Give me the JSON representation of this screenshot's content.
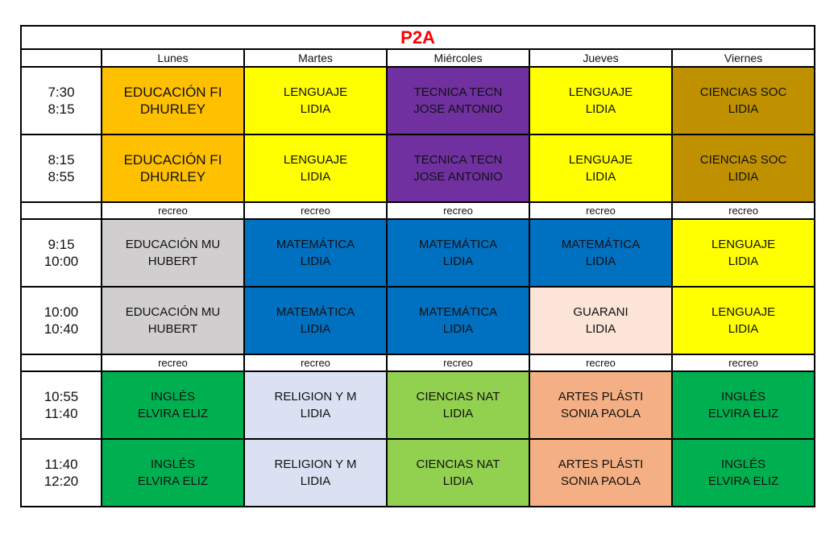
{
  "title": "P2A",
  "days": [
    "Lunes",
    "Martes",
    "Miércoles",
    "Jueves",
    "Viernes"
  ],
  "rows": [
    {
      "type": "slot",
      "times": [
        "7:30",
        "8:15"
      ],
      "cells": [
        {
          "subject": "EDUCACIÓN FI",
          "teacher": "DHURLEY",
          "color": "#ffc000"
        },
        {
          "subject": "LENGUAJE",
          "teacher": "LIDIA",
          "color": "#ffff00"
        },
        {
          "subject": "TECNICA TECN",
          "teacher": "JOSE ANTONIO",
          "color": "#7030a0"
        },
        {
          "subject": "LENGUAJE",
          "teacher": "LIDIA",
          "color": "#ffff00"
        },
        {
          "subject": "CIENCIAS SOC",
          "teacher": "LIDIA",
          "color": "#bf9000"
        }
      ]
    },
    {
      "type": "slot",
      "times": [
        "8:15",
        "8:55"
      ],
      "cells": [
        {
          "subject": "EDUCACIÓN FI",
          "teacher": "DHURLEY",
          "color": "#ffc000"
        },
        {
          "subject": "LENGUAJE",
          "teacher": "LIDIA",
          "color": "#ffff00"
        },
        {
          "subject": "TECNICA TECN",
          "teacher": "JOSE ANTONIO",
          "color": "#7030a0"
        },
        {
          "subject": "LENGUAJE",
          "teacher": "LIDIA",
          "color": "#ffff00"
        },
        {
          "subject": "CIENCIAS SOC",
          "teacher": "LIDIA",
          "color": "#bf9000"
        }
      ]
    },
    {
      "type": "break",
      "cells": [
        "recreo",
        "recreo",
        "recreo",
        "recreo",
        "recreo"
      ]
    },
    {
      "type": "slot",
      "times": [
        "9:15",
        "10:00"
      ],
      "cells": [
        {
          "subject": "EDUCACIÓN MU",
          "teacher": "HUBERT",
          "color": "#d0cece"
        },
        {
          "subject": "MATEMÁTICA",
          "teacher": "LIDIA",
          "color": "#0070c0"
        },
        {
          "subject": "MATEMÁTICA",
          "teacher": "LIDIA",
          "color": "#0070c0"
        },
        {
          "subject": "MATEMÁTICA",
          "teacher": "LIDIA",
          "color": "#0070c0"
        },
        {
          "subject": "LENGUAJE",
          "teacher": "LIDIA",
          "color": "#ffff00"
        }
      ]
    },
    {
      "type": "slot",
      "times": [
        "10:00",
        "10:40"
      ],
      "cells": [
        {
          "subject": "EDUCACIÓN MU",
          "teacher": "HUBERT",
          "color": "#d0cece"
        },
        {
          "subject": "MATEMÁTICA",
          "teacher": "LIDIA",
          "color": "#0070c0"
        },
        {
          "subject": "MATEMÁTICA",
          "teacher": "LIDIA",
          "color": "#0070c0"
        },
        {
          "subject": "GUARANI",
          "teacher": "LIDIA",
          "color": "#fce4d6"
        },
        {
          "subject": "LENGUAJE",
          "teacher": "LIDIA",
          "color": "#ffff00"
        }
      ]
    },
    {
      "type": "break",
      "cells": [
        "recreo",
        "recreo",
        "recreo",
        "recreo",
        "recreo"
      ]
    },
    {
      "type": "slot",
      "times": [
        "10:55",
        "11:40"
      ],
      "cells": [
        {
          "subject": "INGLÉS",
          "teacher": "ELVIRA ELIZ",
          "color": "#00b050"
        },
        {
          "subject": "RELIGION Y M",
          "teacher": "LIDIA",
          "color": "#d9e1f2"
        },
        {
          "subject": "CIENCIAS NAT",
          "teacher": "LIDIA",
          "color": "#92d050"
        },
        {
          "subject": "ARTES PLÁSTI",
          "teacher": "SONIA PAOLA",
          "color": "#f4b084"
        },
        {
          "subject": "INGLÉS",
          "teacher": "ELVIRA ELIZ",
          "color": "#00b050"
        }
      ]
    },
    {
      "type": "slot",
      "times": [
        "11:40",
        "12:20"
      ],
      "cells": [
        {
          "subject": "INGLÉS",
          "teacher": "ELVIRA ELIZ",
          "color": "#00b050"
        },
        {
          "subject": "RELIGION Y M",
          "teacher": "LIDIA",
          "color": "#d9e1f2"
        },
        {
          "subject": "CIENCIAS NAT",
          "teacher": "LIDIA",
          "color": "#92d050"
        },
        {
          "subject": "ARTES PLÁSTI",
          "teacher": "SONIA PAOLA",
          "color": "#f4b084"
        },
        {
          "subject": "INGLÉS",
          "teacher": "ELVIRA ELIZ",
          "color": "#00b050"
        }
      ]
    }
  ]
}
